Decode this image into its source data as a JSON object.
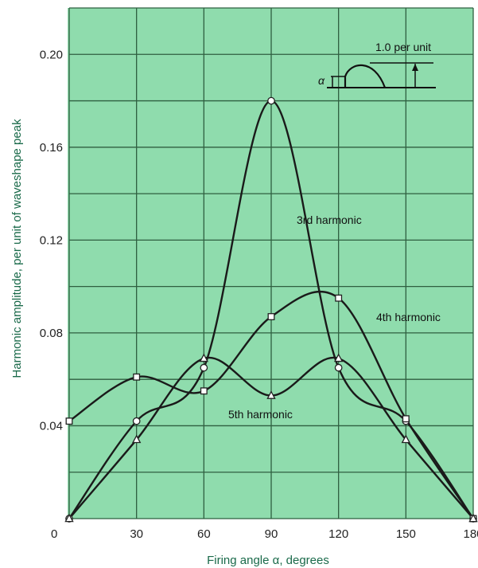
{
  "chart_data": {
    "type": "line",
    "xlabel": "Firing angle α, degrees",
    "ylabel": "Harmonic amplitude, per unit of waveshape peak",
    "xlim": [
      0,
      180
    ],
    "ylim": [
      0,
      0.22
    ],
    "x_ticks": [
      "0",
      "30",
      "60",
      "90",
      "120",
      "150",
      "180"
    ],
    "y_ticks": [
      "0.04",
      "0.08",
      "0.12",
      "0.16",
      "0.20"
    ],
    "grid": true,
    "colors": {
      "plot_bg": "#8fdcad",
      "grid": "#2f5f40",
      "curve": "#1a1a1a",
      "axis_label": "#1a6a4a"
    },
    "series": [
      {
        "name": "3rd harmonic",
        "marker": "circle",
        "points": [
          [
            0,
            0
          ],
          [
            30,
            0.042
          ],
          [
            60,
            0.065
          ],
          [
            90,
            0.18
          ],
          [
            120,
            0.065
          ],
          [
            150,
            0.042
          ],
          [
            180,
            0
          ]
        ]
      },
      {
        "name": "4th harmonic",
        "marker": "square",
        "points": [
          [
            0,
            0.042
          ],
          [
            30,
            0.061
          ],
          [
            60,
            0.055
          ],
          [
            90,
            0.087
          ],
          [
            120,
            0.095
          ],
          [
            150,
            0.043
          ],
          [
            180,
            0
          ]
        ]
      },
      {
        "name": "5th harmonic",
        "marker": "triangle",
        "points": [
          [
            0,
            0
          ],
          [
            30,
            0.034
          ],
          [
            60,
            0.069
          ],
          [
            90,
            0.053
          ],
          [
            120,
            0.069
          ],
          [
            150,
            0.034
          ],
          [
            180,
            0
          ]
        ]
      }
    ],
    "inset": {
      "amplitude_label": "1.0 per unit",
      "angle_symbol": "α"
    }
  }
}
